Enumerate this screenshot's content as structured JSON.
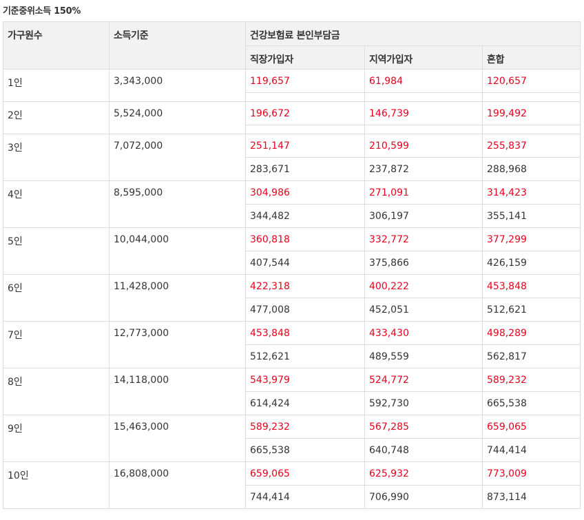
{
  "caption": "기준중위소득 150%",
  "headers": {
    "household": "가구원수",
    "income": "소득기준",
    "group": "건강보험료 본인부담금",
    "employee": "직장가입자",
    "regional": "지역가입자",
    "mixed": "혼합"
  },
  "colors": {
    "highlight": "#e8001c",
    "text": "#333333",
    "header_bg": "#f2f2f2",
    "border": "#dcdcdc"
  },
  "rows": [
    {
      "household": "1인",
      "income": "3,343,000",
      "employee": [
        "119,657",
        ""
      ],
      "regional": [
        "61,984",
        ""
      ],
      "mixed": [
        "120,657",
        ""
      ]
    },
    {
      "household": "2인",
      "income": "5,524,000",
      "employee": [
        "196,672",
        ""
      ],
      "regional": [
        "146,739",
        ""
      ],
      "mixed": [
        "199,492",
        ""
      ]
    },
    {
      "household": "3인",
      "income": "7,072,000",
      "employee": [
        "251,147",
        "283,671"
      ],
      "regional": [
        "210,599",
        "237,872"
      ],
      "mixed": [
        "255,837",
        "288,968"
      ]
    },
    {
      "household": "4인",
      "income": "8,595,000",
      "employee": [
        "304,986",
        "344,482"
      ],
      "regional": [
        "271,091",
        "306,197"
      ],
      "mixed": [
        "314,423",
        "355,141"
      ]
    },
    {
      "household": "5인",
      "income": "10,044,000",
      "employee": [
        "360,818",
        "407,544"
      ],
      "regional": [
        "332,772",
        "375,866"
      ],
      "mixed": [
        "377,299",
        "426,159"
      ]
    },
    {
      "household": "6인",
      "income": "11,428,000",
      "employee": [
        "422,318",
        "477,008"
      ],
      "regional": [
        "400,222",
        "452,051"
      ],
      "mixed": [
        "453,848",
        "512,621"
      ]
    },
    {
      "household": "7인",
      "income": "12,773,000",
      "employee": [
        "453,848",
        "512,621"
      ],
      "regional": [
        "433,430",
        "489,559"
      ],
      "mixed": [
        "498,289",
        "562,817"
      ]
    },
    {
      "household": "8인",
      "income": "14,118,000",
      "employee": [
        "543,979",
        "614,424"
      ],
      "regional": [
        "524,772",
        "592,730"
      ],
      "mixed": [
        "589,232",
        "665,538"
      ]
    },
    {
      "household": "9인",
      "income": "15,463,000",
      "employee": [
        "589,232",
        "665,538"
      ],
      "regional": [
        "567,285",
        "640,748"
      ],
      "mixed": [
        "659,065",
        "744,414"
      ]
    },
    {
      "household": "10인",
      "income": "16,808,000",
      "employee": [
        "659,065",
        "744,414"
      ],
      "regional": [
        "625,932",
        "706,990"
      ],
      "mixed": [
        "773,009",
        "873,114"
      ]
    }
  ]
}
